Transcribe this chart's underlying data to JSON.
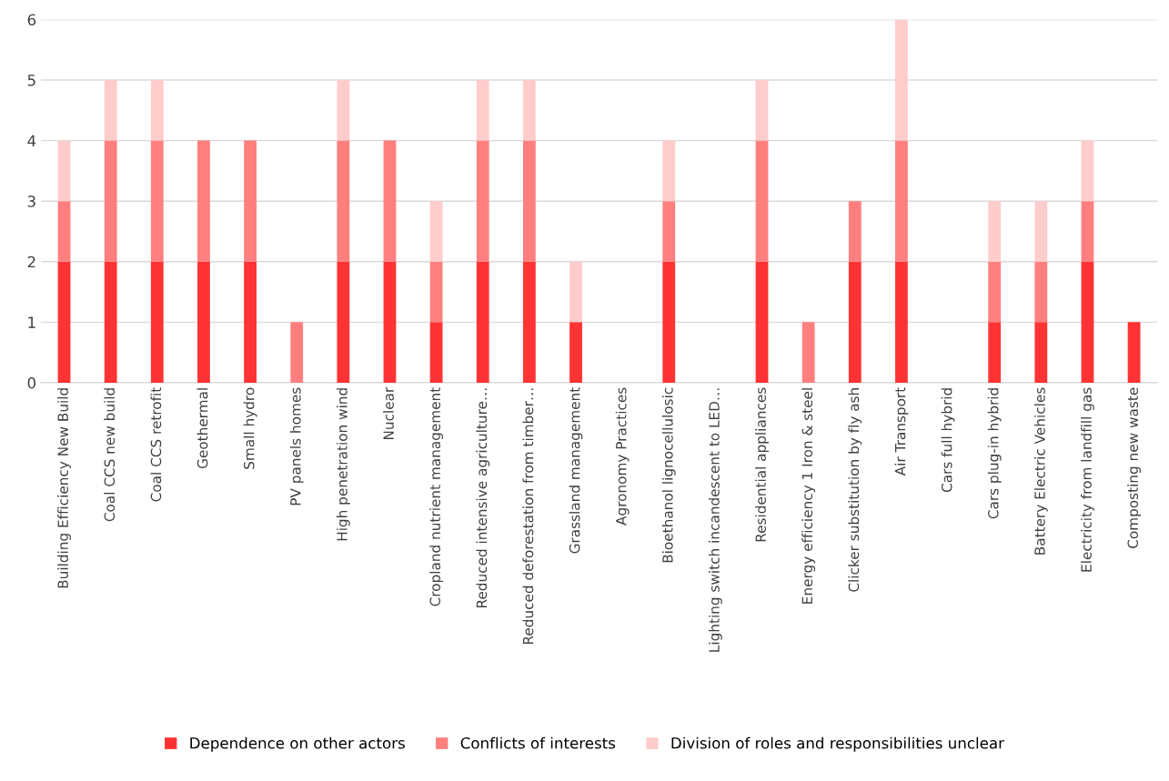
{
  "chart_data": {
    "type": "bar",
    "stacked": true,
    "categories": [
      "Building Efficiency New Build",
      "Coal CCS new build",
      "Coal CCS retrofit",
      "Geothermal",
      "Small hydro",
      "PV panels homes",
      "High penetration wind",
      "Nuclear",
      "Cropland nutrient management",
      "Reduced intensive agriculture…",
      "Reduced deforestation from timber…",
      "Grassland management",
      "Agronomy Practices",
      "Bioethanol lignocellulosic",
      "Lighting switch incandescent to LED…",
      "Residential appliances",
      "Energy efficiency 1 Iron & steel",
      "Clicker substitution by fly ash",
      "Air Transport",
      "Cars full hybrid",
      "Cars plug-in hybrid",
      "Battery Electric Vehicles",
      "Electricity from landfill gas",
      "Composting new waste"
    ],
    "series": [
      {
        "name": "Dependence on other actors",
        "color": "#ff3333",
        "values": [
          2,
          2,
          2,
          2,
          2,
          0,
          2,
          2,
          1,
          2,
          2,
          1,
          0,
          2,
          0,
          2,
          0,
          2,
          2,
          0,
          1,
          1,
          2,
          1
        ]
      },
      {
        "name": "Conflicts of interests",
        "color": "#ff7f7f",
        "values": [
          1,
          2,
          2,
          2,
          2,
          1,
          2,
          2,
          1,
          2,
          2,
          0,
          0,
          1,
          0,
          2,
          1,
          1,
          2,
          0,
          1,
          1,
          1,
          0
        ]
      },
      {
        "name": "Division of roles and responsibilities unclear",
        "color": "#ffcccc",
        "values": [
          1,
          1,
          1,
          0,
          0,
          0,
          1,
          0,
          1,
          1,
          1,
          1,
          0,
          1,
          0,
          1,
          0,
          0,
          2,
          0,
          1,
          1,
          1,
          0
        ]
      }
    ],
    "ylim": [
      0,
      6
    ],
    "yticks": [
      0,
      1,
      2,
      3,
      4,
      5,
      6
    ],
    "grid": "y",
    "legend": "bottom"
  }
}
